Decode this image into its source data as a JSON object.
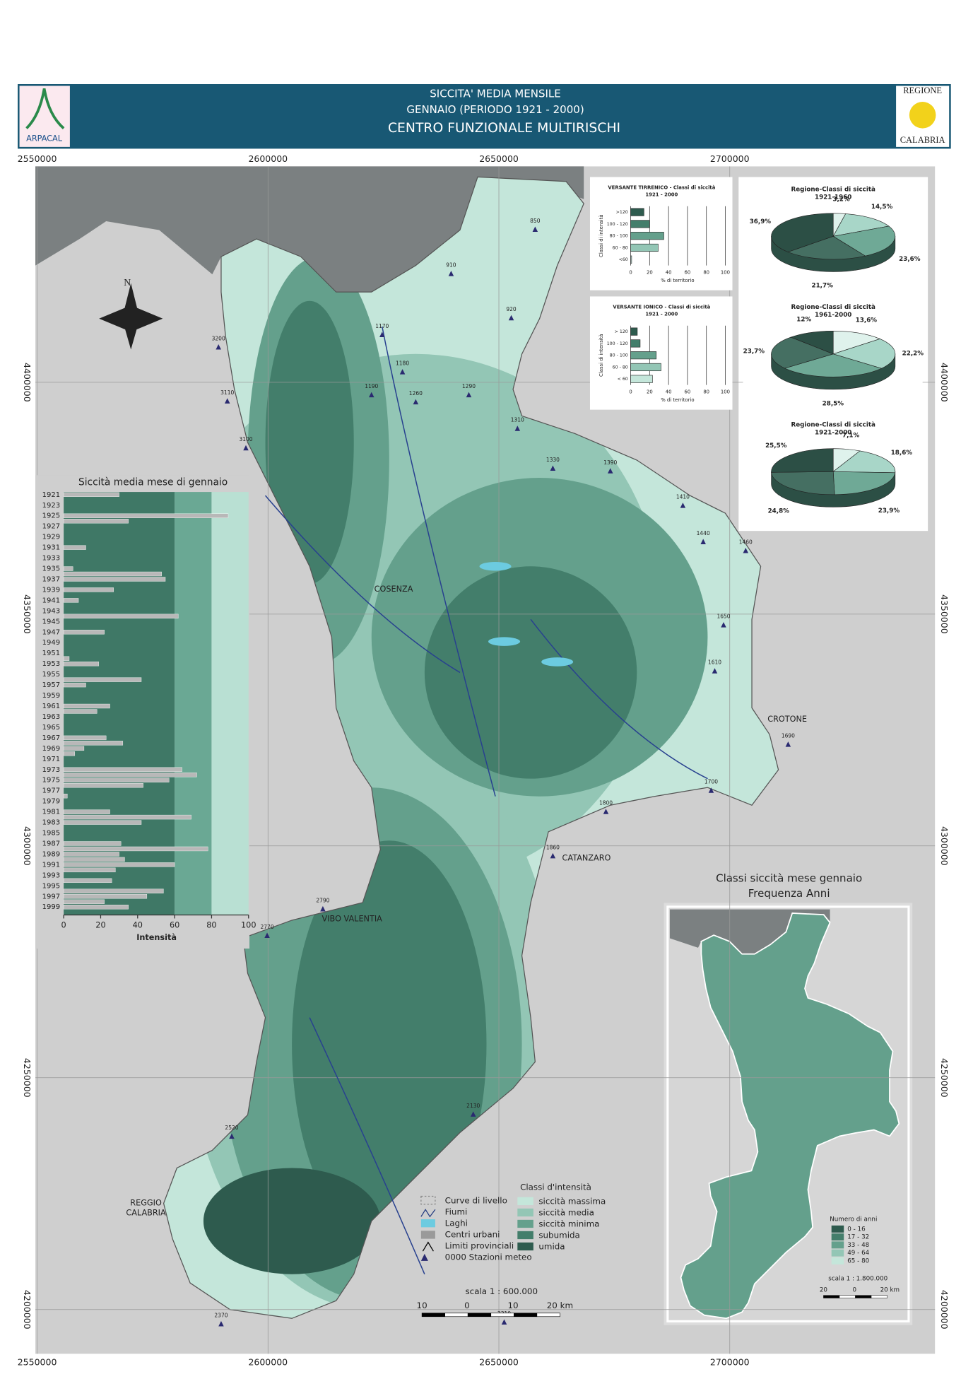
{
  "header": {
    "line1": "SICCITA' MEDIA MENSILE",
    "line2": "GENNAIO (PERIODO 1921 - 2000)",
    "line3": "CENTRO FUNZIONALE MULTIRISCHI",
    "logo_left": "ARPACAL",
    "logo_right_top": "REGIONE",
    "logo_right_bottom": "CALABRIA"
  },
  "map": {
    "x_ticks": [
      2550000,
      2600000,
      2650000,
      2700000
    ],
    "y_ticks": [
      4400000,
      4350000,
      4300000,
      4250000,
      4200000
    ],
    "cities": [
      "COSENZA",
      "CROTONE",
      "CATANZARO",
      "VIBO VALENTIA",
      "REGGIO",
      "CALABRIA"
    ],
    "stations": [
      "1170",
      "1190",
      "1180",
      "1260",
      "1290",
      "1310",
      "1330",
      "1390",
      "1410",
      "1440",
      "1460",
      "1650",
      "1610",
      "1690",
      "1700",
      "1800",
      "1860",
      "2130",
      "2310",
      "2370",
      "2520",
      "2770",
      "2790",
      "3100",
      "3110",
      "3200",
      "850",
      "910",
      "920"
    ],
    "north": "N",
    "scale": "scala 1 : 600.000",
    "scale_labels": [
      "10",
      "0",
      "10",
      "20 km"
    ]
  },
  "legend": {
    "symbols": [
      "Curve di livello",
      "Fiumi",
      "Laghi",
      "Centri urbani",
      "Limiti provinciali",
      "0000 Stazioni meteo"
    ],
    "classes_title": "Classi d'intensità",
    "classes": [
      {
        "name": "siccità massima",
        "color": "#c4e6da"
      },
      {
        "name": "siccità media",
        "color": "#93c6b5"
      },
      {
        "name": "siccità minima",
        "color": "#64a08c"
      },
      {
        "name": "subumida",
        "color": "#437e6b"
      },
      {
        "name": "umida",
        "color": "#2e5b4e"
      }
    ]
  },
  "chart_data": [
    {
      "type": "bar",
      "title": "Siccità media mese di gennaio",
      "x_label": "Intensità",
      "categories": [
        "1921",
        null,
        "1923",
        null,
        "1925",
        null,
        "1927",
        null,
        "1929",
        null,
        "1931",
        null,
        "1933",
        null,
        "1935",
        null,
        "1937",
        null,
        "1939",
        null,
        "1941",
        null,
        "1943",
        null,
        "1945",
        null,
        "1947",
        null,
        "1949",
        null,
        "1951",
        null,
        "1953",
        null,
        "1955",
        null,
        "1957",
        null,
        "1959",
        null,
        "1961",
        null,
        "1963",
        null,
        "1965",
        null,
        "1967",
        null,
        "1969",
        null,
        "1971",
        null,
        "1973",
        null,
        "1975",
        null,
        "1977",
        null,
        "1979",
        null,
        "1981",
        null,
        "1983",
        null,
        "1985",
        null,
        "1987",
        null,
        "1989",
        null,
        "1991",
        null,
        "1993",
        null,
        "1995",
        null,
        "1997",
        null,
        "1999",
        null
      ],
      "values": [
        30,
        0,
        0,
        0,
        89,
        35,
        0,
        0,
        0,
        0,
        12,
        0,
        0,
        0,
        5,
        53,
        55,
        0,
        27,
        0,
        8,
        0,
        0,
        62,
        0,
        0,
        22,
        0,
        0,
        0,
        0,
        3,
        19,
        0,
        0,
        42,
        12,
        0,
        0,
        0,
        25,
        18,
        0,
        0,
        0,
        0,
        23,
        32,
        11,
        6,
        0,
        0,
        64,
        72,
        57,
        43,
        0,
        2,
        0,
        0,
        25,
        69,
        42,
        0,
        0,
        0,
        31,
        78,
        30,
        33,
        60,
        28,
        0,
        26,
        0,
        54,
        45,
        22,
        35,
        0
      ],
      "color": "#b8b8b8",
      "xlim": [
        0,
        100
      ],
      "xticks": [
        0,
        20,
        40,
        60,
        80,
        100
      ],
      "bands": [
        {
          "from": 0,
          "to": 60,
          "color": "#3f7866"
        },
        {
          "from": 60,
          "to": 80,
          "color": "#6aa894"
        },
        {
          "from": 80,
          "to": 100,
          "color": "#b9e0d3"
        }
      ]
    },
    {
      "type": "hbar",
      "title": "VERSANTE TIRRENICO - Classi di siccità",
      "subtitle": "1921 - 2000",
      "y_label": "Classi di intensità",
      "x_label": "% di territorio",
      "categories": [
        ">120",
        "100 - 120",
        "80 - 100",
        "60 - 80",
        "<60"
      ],
      "values": [
        14,
        20,
        35,
        29,
        1
      ],
      "colors": [
        "#2e5b4e",
        "#437e6b",
        "#64a08c",
        "#93c6b5",
        "#c4e6da"
      ],
      "xlim": [
        0,
        100
      ],
      "xticks": [
        0,
        20,
        40,
        60,
        80,
        100
      ]
    },
    {
      "type": "hbar",
      "title": "VERSANTE IONICO - Classi di siccità",
      "subtitle": "1921 - 2000",
      "y_label": "Classi di intensità",
      "x_label": "% di territorio",
      "categories": [
        "> 120",
        "100 - 120",
        "80 - 100",
        "60 - 80",
        "< 60"
      ],
      "values": [
        7,
        10,
        27,
        32,
        23
      ],
      "colors": [
        "#2e5b4e",
        "#437e6b",
        "#64a08c",
        "#93c6b5",
        "#c4e6da"
      ],
      "xlim": [
        0,
        100
      ],
      "xticks": [
        0,
        20,
        40,
        60,
        80,
        100
      ]
    },
    {
      "type": "pie",
      "title": "Regione-Classi di siccità",
      "subtitle": "1921-1960",
      "values": [
        3.2,
        14.5,
        23.6,
        21.7,
        36.9
      ],
      "value_labels": [
        "3,2%",
        "14,5%",
        "23,6%",
        "21,7%",
        "36,9%"
      ],
      "colors": [
        "#dff2ec",
        "#a8d6c8",
        "#6fa996",
        "#456f62",
        "#2c4f45"
      ]
    },
    {
      "type": "pie",
      "title": "Regione-Classi di siccità",
      "subtitle": "1961-2000",
      "values": [
        13.6,
        22.2,
        28.5,
        23.7,
        12
      ],
      "value_labels": [
        "13,6%",
        "22,2%",
        "28,5%",
        "23,7%",
        "12%"
      ],
      "colors": [
        "#dff2ec",
        "#a8d6c8",
        "#6fa996",
        "#456f62",
        "#2c4f45"
      ]
    },
    {
      "type": "pie",
      "title": "Regione-Classi di siccità",
      "subtitle": "1921-2000",
      "values": [
        7.1,
        18.6,
        23.9,
        24.8,
        25.5
      ],
      "value_labels": [
        "7,1%",
        "18,6%",
        "23,9%",
        "24,8%",
        "25,5%"
      ],
      "colors": [
        "#dff2ec",
        "#a8d6c8",
        "#6fa996",
        "#456f62",
        "#2c4f45"
      ]
    }
  ],
  "inset": {
    "title": "Classi siccità mese gennaio",
    "subtitle": "Frequenza Anni",
    "legend_title": "Numero di anni",
    "classes": [
      {
        "name": "0 - 16",
        "color": "#2e5b4e"
      },
      {
        "name": "17 - 32",
        "color": "#437e6b"
      },
      {
        "name": "33 - 48",
        "color": "#64a08c"
      },
      {
        "name": "49 - 64",
        "color": "#93c6b5"
      },
      {
        "name": "65 - 80",
        "color": "#c4e6da"
      }
    ],
    "scale": "scala 1 : 1.800.000",
    "scale_labels": [
      "20",
      "0",
      "20 km"
    ]
  }
}
